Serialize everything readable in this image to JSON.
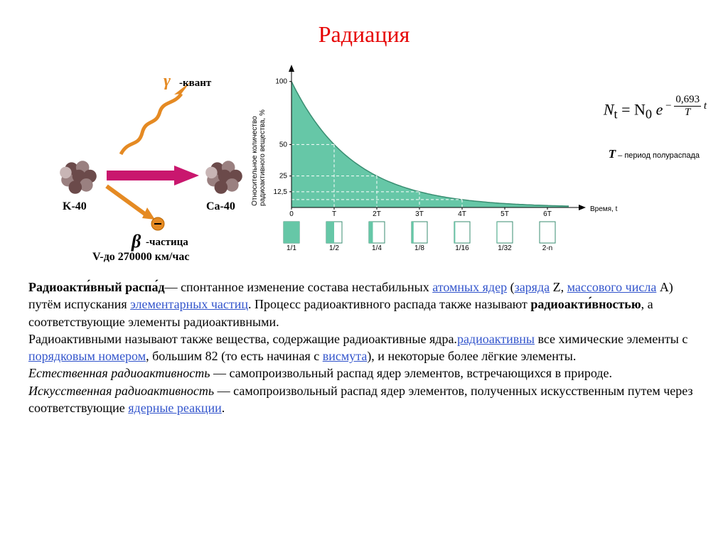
{
  "title": {
    "text": "Радиация",
    "color": "#e60000"
  },
  "decay_diagram": {
    "nucleus_a_label": "K-40",
    "nucleus_b_label": "Ca-40",
    "gamma_label": "-квант",
    "beta_label": "-частица",
    "velocity_label": "V-до 270000 км/час",
    "nucleon_colors": [
      "#6b4a4a",
      "#9a8080",
      "#c8b5b5"
    ],
    "arrow_main_color": "#c9176e",
    "arrow_beta_color": "#e58a23",
    "arrow_gamma_color": "#e58a23",
    "gamma_symbol_color": "#e58a23",
    "beta_circle_color": "#e58a23",
    "beta_sign_color": "#000000"
  },
  "chart": {
    "type": "line",
    "ylabel": "Относительное количество\nрадиоактивного вещества, %",
    "xlabel": "Время, t",
    "ylim": [
      0,
      110
    ],
    "ytick_values": [
      12.5,
      25,
      50,
      100
    ],
    "ytick_labels": [
      "12,5",
      "25",
      "50",
      "100"
    ],
    "xtick_labels": [
      "0",
      "T",
      "2T",
      "3T",
      "4T",
      "5T",
      "6T"
    ],
    "curve_color": "#66c7a7",
    "fill_color": "#66c7a7",
    "grid_color": "#ffffff",
    "axis_color": "#000000",
    "background_color": "#ffffff",
    "dash_color": "#ffffff",
    "bar_boxes": {
      "border_color": "#3a8e72",
      "fill_color": "#66c7a7",
      "fractions_fill": [
        1.0,
        0.5,
        0.25,
        0.125,
        0.0625,
        0.03125,
        0.0
      ],
      "labels": [
        "1/1",
        "1/2",
        "1/4",
        "1/8",
        "1/16",
        "1/32",
        "2-n"
      ]
    }
  },
  "formula": {
    "body": "N",
    "sub_t": "t",
    "eq": "= N",
    "sub_0": "0",
    "exp_e": "e",
    "exp_numer": "0,693",
    "exp_denom": "T",
    "exp_tail": "t",
    "T_desc_symbol": "T",
    "T_desc_text": "– период полураспада"
  },
  "body": {
    "p1a": "Радиоакти́вный распа́д",
    "p1b": "— спонтанное изменение состава нестабильных ",
    "link1": "атомных ядер",
    "p1c": " (",
    "link2": "заряда",
    "p1d": " Z, ",
    "link3": "массового числа",
    "p1e": " A) путём испускания ",
    "link4": "элементарных частиц",
    "p1f": ". Процесс радиоактивного распада также называют ",
    "p1g": "радиоакти́вностью",
    "p1h": ", а соответствующие элементы радиоактивными.",
    "p2a": " Радиоактивными называют также вещества, содержащие радиоактивные ядра.",
    "link5": "радиоактивны",
    "p2b": " все химические элементы с ",
    "link6": "порядковым номером",
    "p2c": ", большим 82 (то есть начиная с ",
    "link7": "висмута",
    "p2d": "), и некоторые более лёгкие элементы.",
    "p3a": "Естественная радиоактивность",
    "p3b": " — самопроизвольный распад ядер элементов, встречающихся в природе.",
    "p4a": "Искусственная радиоактивность",
    "p4b": " — самопроизвольный распад ядер элементов, полученных искусственным путем через соответствующие ",
    "link8": "ядерные реакции",
    "p4c": "."
  }
}
